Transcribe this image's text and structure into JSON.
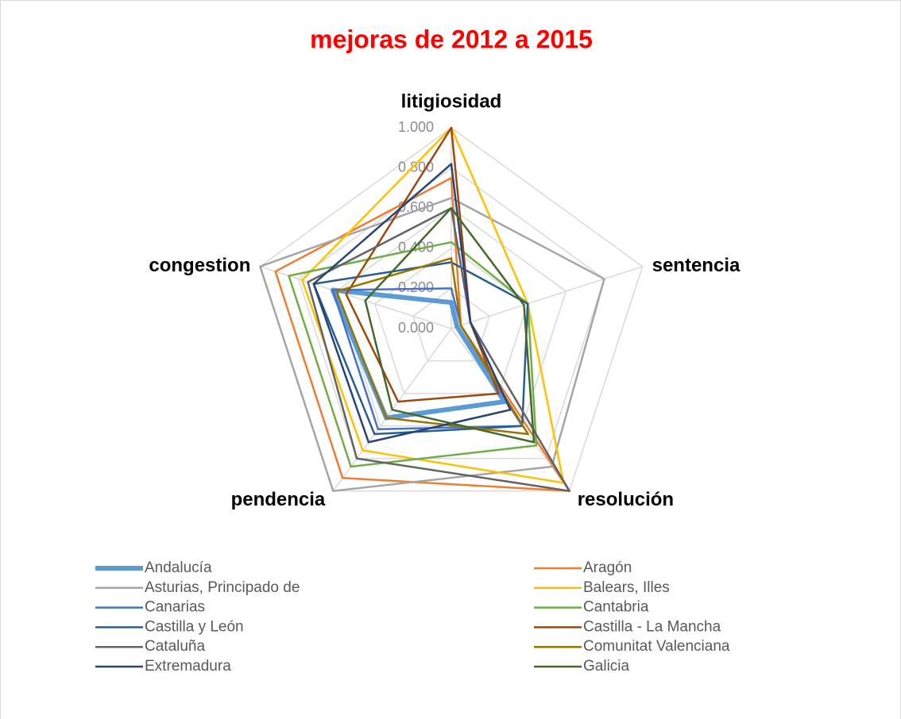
{
  "chart_data": {
    "type": "radar",
    "title": "mejoras de 2012 a 2015",
    "categories": [
      "litigiosidad",
      "sentencia",
      "resolución",
      "pendencia",
      "congestion"
    ],
    "ylim": [
      0,
      1
    ],
    "yticks": [
      {
        "value": 0,
        "label": "0.000"
      },
      {
        "value": 0.2,
        "label": "0.200"
      },
      {
        "value": 0.4,
        "label": "0.400"
      },
      {
        "value": 0.6,
        "label": "0.600"
      },
      {
        "value": 0.8,
        "label": "0.800"
      },
      {
        "value": 1,
        "label": "1.000"
      }
    ],
    "grid": true,
    "legend": "bottom",
    "series": [
      {
        "name": "Andalucía",
        "color": "#5b9bd5",
        "values": [
          0.13,
          0.03,
          0.45,
          0.55,
          0.62
        ]
      },
      {
        "name": "Aragón",
        "color": "#ed7d31",
        "values": [
          0.75,
          0.05,
          1.0,
          0.92,
          0.92
        ]
      },
      {
        "name": "Asturias, Principado de",
        "color": "#a5a5a5",
        "values": [
          0.65,
          0.8,
          0.85,
          1.0,
          1.0
        ]
      },
      {
        "name": "Balears, Illes",
        "color": "#ffc000",
        "values": [
          1.0,
          0.4,
          0.95,
          0.75,
          0.78
        ]
      },
      {
        "name": "Canarias",
        "color": "#4472c4",
        "values": [
          0.2,
          0.05,
          0.6,
          0.62,
          0.62
        ]
      },
      {
        "name": "Cantabria",
        "color": "#70ad47",
        "values": [
          0.43,
          0.4,
          0.72,
          0.85,
          0.85
        ]
      },
      {
        "name": "Castilla y León",
        "color": "#255e91",
        "values": [
          0.33,
          0.4,
          0.6,
          0.65,
          0.72
        ]
      },
      {
        "name": "Castilla - La Mancha",
        "color": "#9e480e",
        "values": [
          1.0,
          0.1,
          0.4,
          0.45,
          0.55
        ]
      },
      {
        "name": "Cataluña",
        "color": "#636363",
        "values": [
          0.6,
          0.1,
          1.0,
          0.8,
          0.75
        ]
      },
      {
        "name": "Comunitat Valenciana",
        "color": "#997300",
        "values": [
          0.35,
          0.05,
          0.65,
          0.55,
          0.6
        ]
      },
      {
        "name": "Extremadura",
        "color": "#264478",
        "values": [
          0.82,
          0.1,
          0.5,
          0.7,
          0.72
        ]
      },
      {
        "name": "Galicia",
        "color": "#43682b",
        "values": [
          0.6,
          0.38,
          0.7,
          0.5,
          0.45
        ]
      }
    ]
  }
}
